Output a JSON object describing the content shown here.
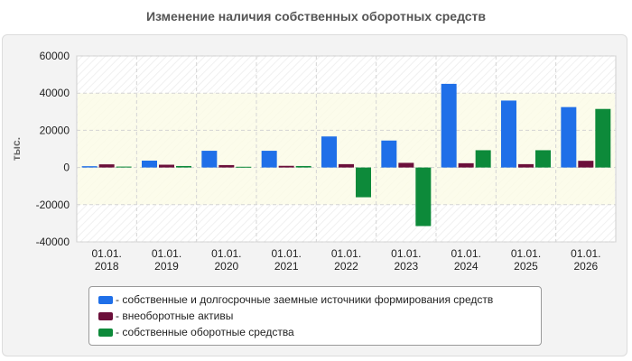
{
  "chart_data": {
    "type": "bar",
    "title": "Изменение наличия собственных оборотных средств",
    "ylabel": "тыс.",
    "xlabel": "",
    "ylim": [
      -40000,
      60000
    ],
    "yticks": [
      60000,
      40000,
      20000,
      0,
      -20000,
      -40000
    ],
    "categories": [
      "01.01.\n2018",
      "01.01.\n2019",
      "01.01.\n2020",
      "01.01.\n2021",
      "01.01.\n2022",
      "01.01.\n2023",
      "01.01.\n2024",
      "01.01.\n2025",
      "01.01.\n2026"
    ],
    "series": [
      {
        "name": "- собственные и долгосрочные заемные источники формирования средств",
        "color": "#1f6fe8",
        "values": [
          700,
          3700,
          9000,
          9000,
          16700,
          14500,
          45000,
          36000,
          32500
        ]
      },
      {
        "name": "- внеоборотные активы",
        "color": "#6b0f3a",
        "values": [
          1700,
          1500,
          1300,
          900,
          1800,
          2500,
          2300,
          1800,
          3600
        ]
      },
      {
        "name": "- собственные оборотные средства",
        "color": "#0d8a3a",
        "values": [
          500,
          800,
          400,
          800,
          -16000,
          -31500,
          9300,
          9300,
          31500
        ]
      }
    ],
    "grid": true,
    "legend": "bottom"
  }
}
